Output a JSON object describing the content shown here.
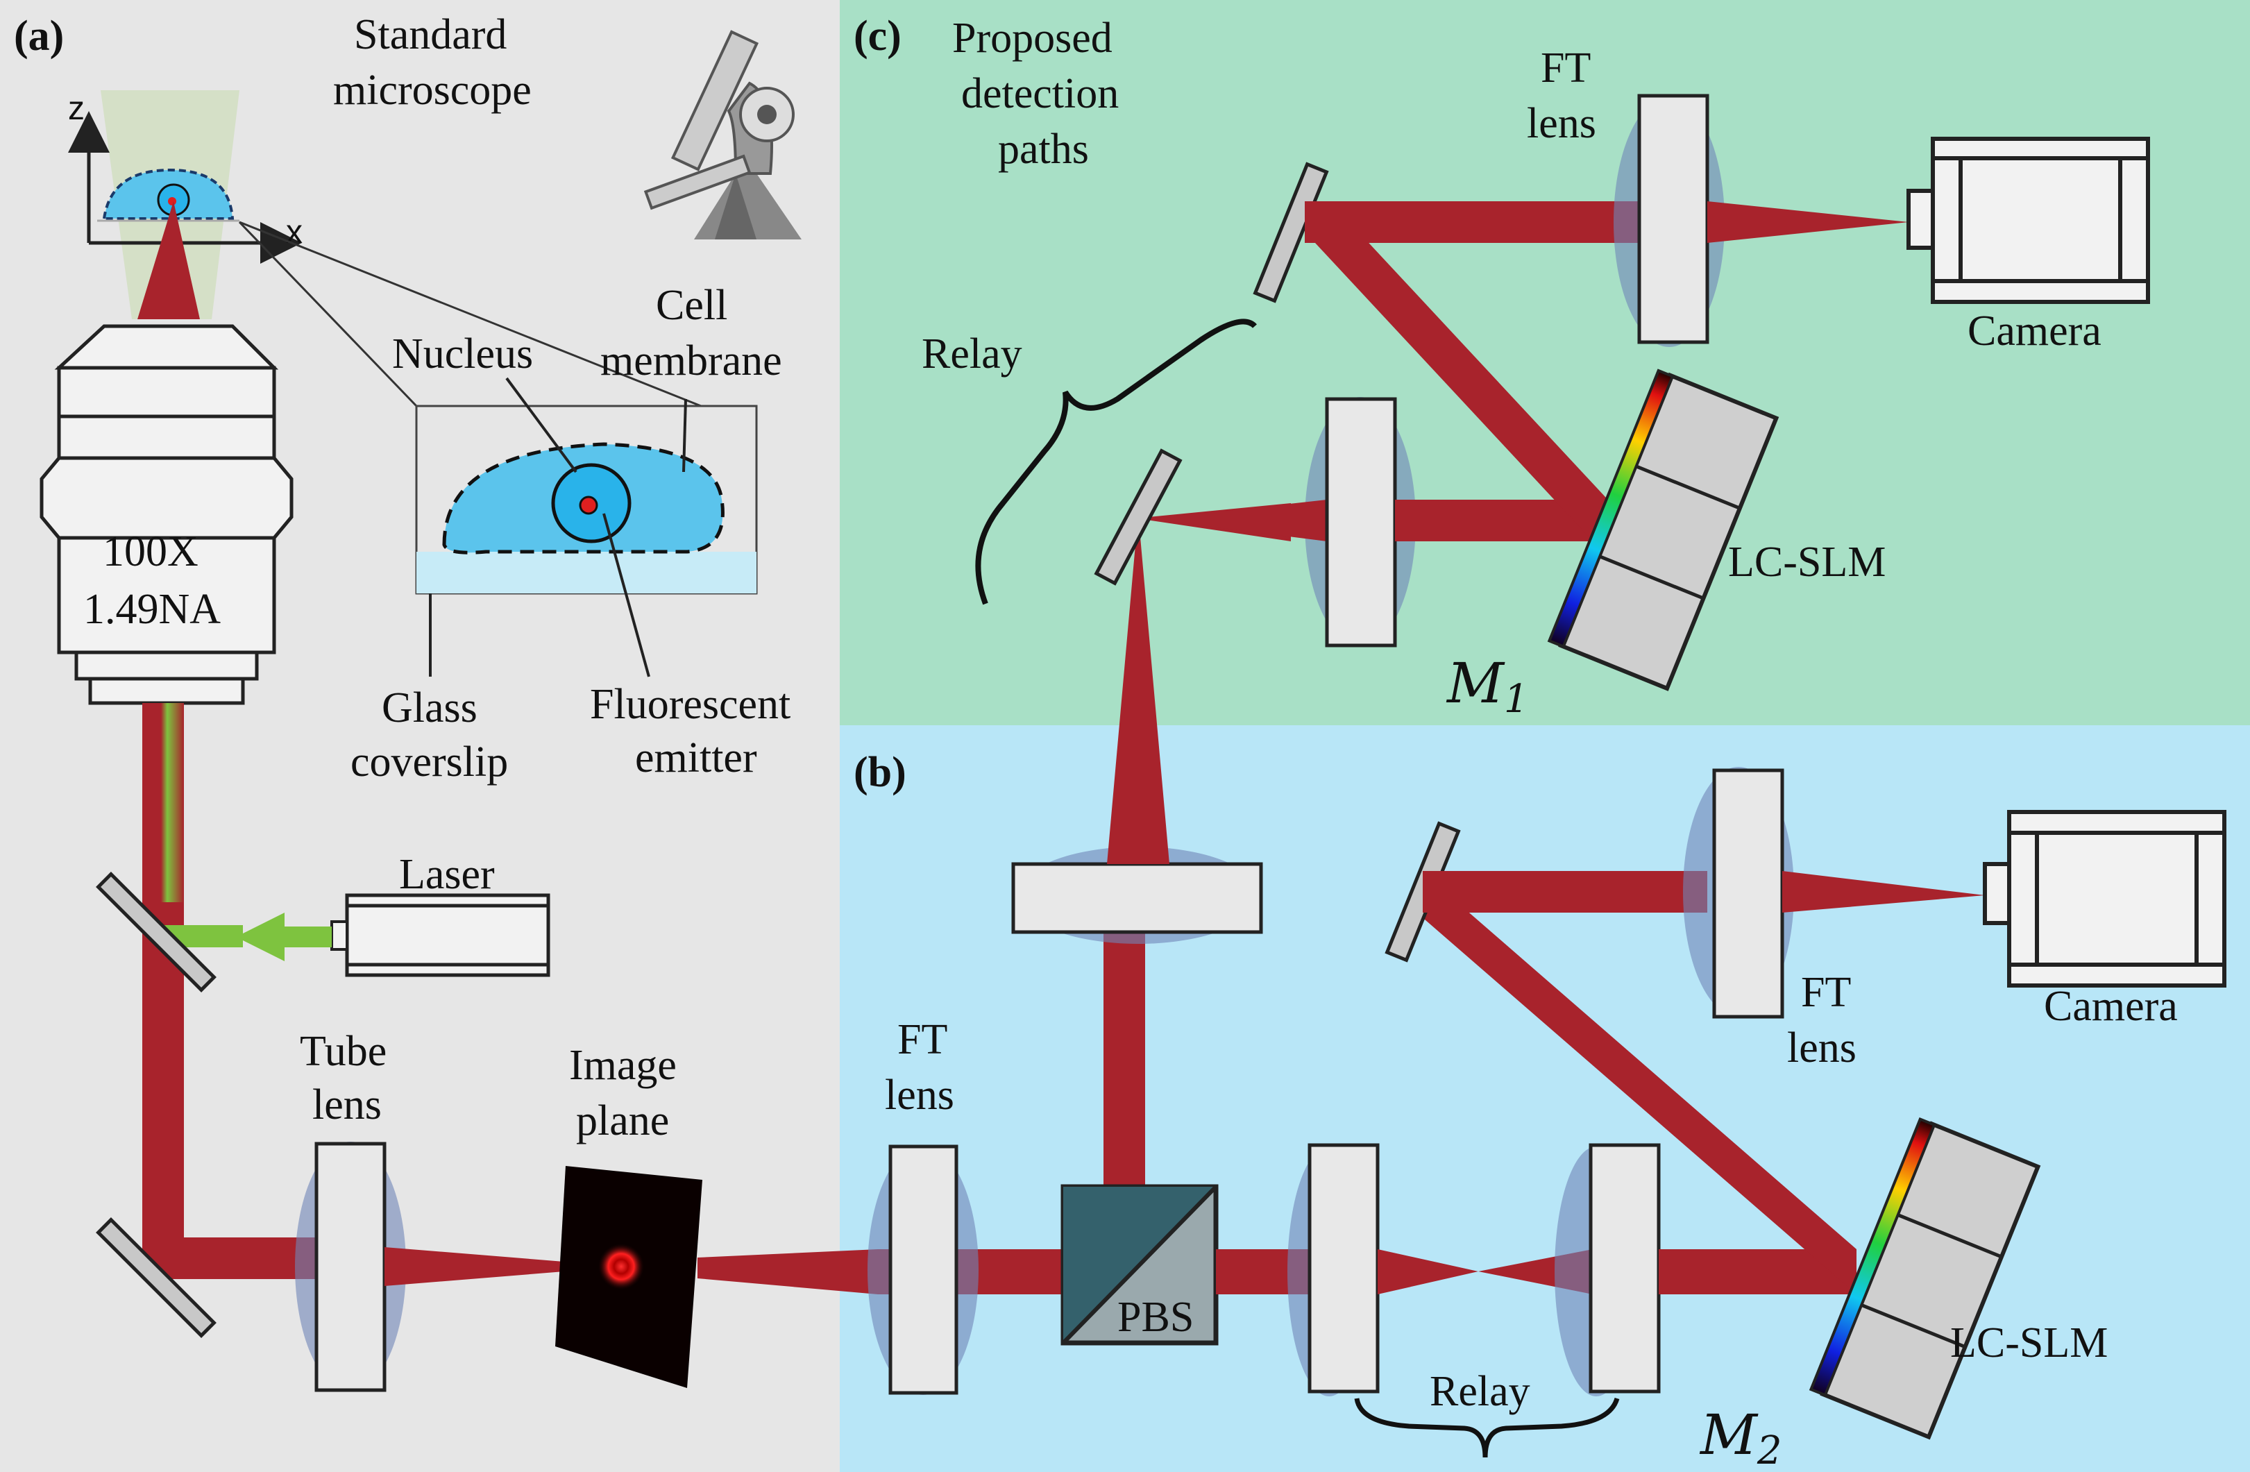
{
  "figure": {
    "panels": {
      "a": "(a)",
      "b": "(b)",
      "c": "(c)"
    },
    "colors": {
      "panel_a_bg": "#e6e6e6",
      "panel_b_bg": "#b8e6f7",
      "panel_c_bg": "#a8e0c6",
      "beam_red": "#a8232c",
      "beam_green": "#7ec33f",
      "lens_blue": "#6f86b8",
      "cell_blue": "#5bc4ec",
      "nucleus_blue": "#29b3ea",
      "emitter_red": "#e02020"
    },
    "panel_a": {
      "title_line1": "Standard",
      "title_line2": "microscope",
      "axis_z": "z",
      "axis_x": "x",
      "nucleus": "Nucleus",
      "cell_membrane_1": "Cell",
      "cell_membrane_2": "membrane",
      "glass_1": "Glass",
      "glass_2": "coverslip",
      "emitter_1": "Fluorescent",
      "emitter_2": "emitter",
      "objective_1": "100X",
      "objective_2": "1.49NA",
      "laser": "Laser",
      "tube_lens_1": "Tube",
      "tube_lens_2": "lens",
      "image_plane_1": "Image",
      "image_plane_2": "plane"
    },
    "panel_b": {
      "ft_lens_1": "FT",
      "ft_lens_2": "lens",
      "pbs": "PBS",
      "relay": "Relay",
      "ft_lens2_1": "FT",
      "ft_lens2_2": "lens",
      "camera": "Camera",
      "slm": "LC-SLM",
      "mask": "M",
      "mask_sub": "2"
    },
    "panel_c": {
      "title_1": "Proposed",
      "title_2": "detection",
      "title_3": "paths",
      "ft_lens_1": "FT",
      "ft_lens_2": "lens",
      "relay": "Relay",
      "camera": "Camera",
      "slm": "LC-SLM",
      "mask": "M",
      "mask_sub": "1"
    }
  }
}
